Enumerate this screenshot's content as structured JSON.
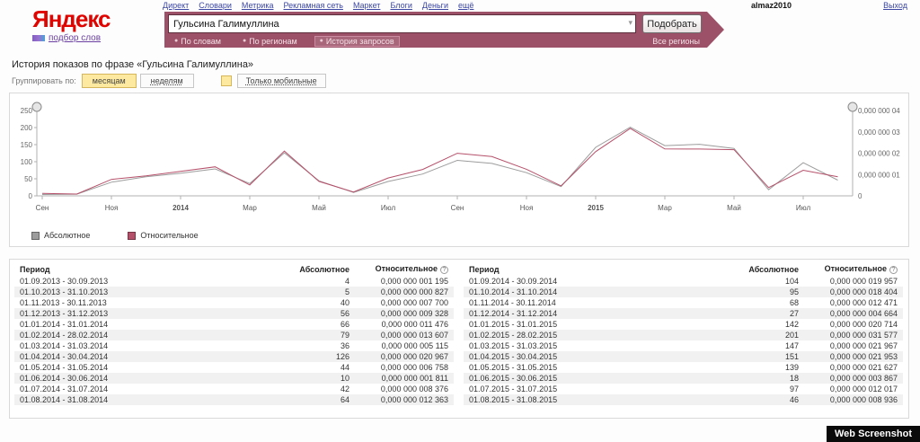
{
  "header": {
    "nav": [
      "Директ",
      "Словари",
      "Метрика",
      "Рекламная сеть",
      "Маркет",
      "Блоги",
      "Деньги",
      "ещё"
    ],
    "logo": {
      "brand": "Яндекс",
      "subtitle": "подбор слов"
    },
    "user": "almaz2010",
    "logout": "Выход"
  },
  "search": {
    "query": "Гульсина Галимуллина",
    "submit_label": "Подобрать",
    "modes": [
      {
        "label": "По словам",
        "selected": false
      },
      {
        "label": "По регионам",
        "selected": false
      },
      {
        "label": "История запросов",
        "selected": true
      }
    ],
    "regions_label": "Все регионы"
  },
  "content": {
    "title": "История показов по фразе «Гульсина Галимуллина»",
    "group_label": "Группировать по:",
    "group_options": [
      {
        "label": "месяцам",
        "active": true
      },
      {
        "label": "неделям",
        "active": false
      }
    ],
    "mobile_only_label": "Только мобильные"
  },
  "colors": {
    "banner_maroon": "#9d5168",
    "brand_red": "#e00400",
    "highlight_yellow": "#fdeaa0",
    "absolute_series": "#9c9c9c",
    "relative_series": "#b5506a"
  },
  "chart_data": {
    "type": "line",
    "title": "История показов по фразе «Гульсина Галимуллина»",
    "x_months": [
      "09.2013",
      "10.2013",
      "11.2013",
      "12.2013",
      "01.2014",
      "02.2014",
      "03.2014",
      "04.2014",
      "05.2014",
      "06.2014",
      "07.2014",
      "08.2014",
      "09.2014",
      "10.2014",
      "11.2014",
      "12.2014",
      "01.2015",
      "02.2015",
      "03.2015",
      "04.2015",
      "05.2015",
      "06.2015",
      "07.2015",
      "08.2015"
    ],
    "x_tick_labels": [
      "Сен",
      "Ноя",
      "2014",
      "Мар",
      "Май",
      "Июл",
      "Сен",
      "Ноя",
      "2015",
      "Мар",
      "Май",
      "Июл"
    ],
    "left_axis": {
      "ticks": [
        0,
        50,
        100,
        150,
        200,
        250
      ],
      "max": 250
    },
    "right_axis": {
      "tick_labels": [
        "0,000 000 04",
        "0,000 000 03",
        "0,000 000 02",
        "0,000 000 01",
        "0"
      ],
      "max_nano": 40
    },
    "series": [
      {
        "name": "Абсолютное",
        "axis": "left",
        "color": "#9c9c9c",
        "values": [
          4,
          5,
          40,
          56,
          66,
          79,
          36,
          126,
          44,
          10,
          42,
          64,
          104,
          95,
          68,
          27,
          142,
          201,
          147,
          151,
          139,
          18,
          97,
          46
        ]
      },
      {
        "name": "Относительное",
        "axis": "right",
        "color": "#b5506a",
        "unit": "1e-9",
        "values": [
          1.195,
          0.827,
          7.7,
          9.328,
          11.476,
          13.607,
          5.115,
          20.967,
          6.758,
          1.811,
          8.376,
          12.363,
          19.957,
          18.404,
          12.471,
          4.664,
          20.714,
          31.577,
          21.967,
          21.953,
          21.627,
          3.867,
          12.017,
          8.936
        ]
      }
    ],
    "legend_position": "bottom-left",
    "grid": false
  },
  "table": {
    "headers": [
      "Период",
      "Абсолютное",
      "Относительное"
    ],
    "help_icon": "?",
    "left_rows": [
      {
        "period": "01.09.2013 - 30.09.2013",
        "abs": "4",
        "rel": "0,000 000 001 195"
      },
      {
        "period": "01.10.2013 - 31.10.2013",
        "abs": "5",
        "rel": "0,000 000 000 827"
      },
      {
        "period": "01.11.2013 - 30.11.2013",
        "abs": "40",
        "rel": "0,000 000 007 700"
      },
      {
        "period": "01.12.2013 - 31.12.2013",
        "abs": "56",
        "rel": "0,000 000 009 328"
      },
      {
        "period": "01.01.2014 - 31.01.2014",
        "abs": "66",
        "rel": "0,000 000 011 476"
      },
      {
        "period": "01.02.2014 - 28.02.2014",
        "abs": "79",
        "rel": "0,000 000 013 607"
      },
      {
        "period": "01.03.2014 - 31.03.2014",
        "abs": "36",
        "rel": "0,000 000 005 115"
      },
      {
        "period": "01.04.2014 - 30.04.2014",
        "abs": "126",
        "rel": "0,000 000 020 967"
      },
      {
        "period": "01.05.2014 - 31.05.2014",
        "abs": "44",
        "rel": "0,000 000 006 758"
      },
      {
        "period": "01.06.2014 - 30.06.2014",
        "abs": "10",
        "rel": "0,000 000 001 811"
      },
      {
        "period": "01.07.2014 - 31.07.2014",
        "abs": "42",
        "rel": "0,000 000 008 376"
      },
      {
        "period": "01.08.2014 - 31.08.2014",
        "abs": "64",
        "rel": "0,000 000 012 363"
      }
    ],
    "right_rows": [
      {
        "period": "01.09.2014 - 30.09.2014",
        "abs": "104",
        "rel": "0,000 000 019 957"
      },
      {
        "period": "01.10.2014 - 31.10.2014",
        "abs": "95",
        "rel": "0,000 000 018 404"
      },
      {
        "period": "01.11.2014 - 30.11.2014",
        "abs": "68",
        "rel": "0,000 000 012 471"
      },
      {
        "period": "01.12.2014 - 31.12.2014",
        "abs": "27",
        "rel": "0,000 000 004 664"
      },
      {
        "period": "01.01.2015 - 31.01.2015",
        "abs": "142",
        "rel": "0,000 000 020 714"
      },
      {
        "period": "01.02.2015 - 28.02.2015",
        "abs": "201",
        "rel": "0,000 000 031 577"
      },
      {
        "period": "01.03.2015 - 31.03.2015",
        "abs": "147",
        "rel": "0,000 000 021 967"
      },
      {
        "period": "01.04.2015 - 30.04.2015",
        "abs": "151",
        "rel": "0,000 000 021 953"
      },
      {
        "period": "01.05.2015 - 31.05.2015",
        "abs": "139",
        "rel": "0,000 000 021 627"
      },
      {
        "period": "01.06.2015 - 30.06.2015",
        "abs": "18",
        "rel": "0,000 000 003 867"
      },
      {
        "period": "01.07.2015 - 31.07.2015",
        "abs": "97",
        "rel": "0,000 000 012 017"
      },
      {
        "period": "01.08.2015 - 31.08.2015",
        "abs": "46",
        "rel": "0,000 000 008 936"
      }
    ]
  },
  "watermark": "Web Screenshot"
}
